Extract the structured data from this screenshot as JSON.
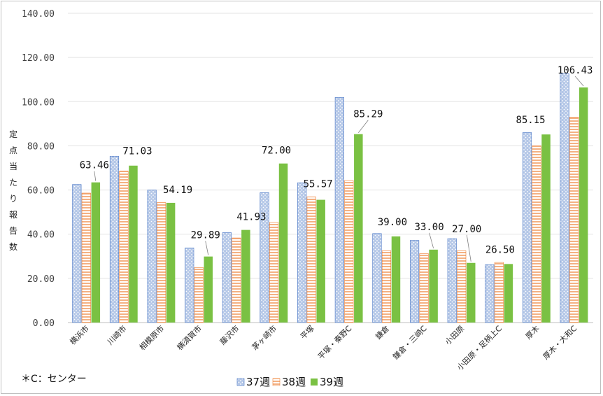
{
  "chart_data": {
    "type": "bar",
    "ylabel": "定点当たり報告数",
    "ylim": [
      0,
      140
    ],
    "yticks": [
      "0.00",
      "20.00",
      "40.00",
      "60.00",
      "80.00",
      "100.00",
      "120.00",
      "140.00"
    ],
    "categories": [
      "横浜市",
      "川崎市",
      "相模原市",
      "横須賀市",
      "藤沢市",
      "茅ヶ崎市",
      "平塚",
      "平塚・秦野C",
      "鎌倉",
      "鎌倉・三崎C",
      "小田原",
      "小田原・足柄上C",
      "厚木",
      "厚木・大和C"
    ],
    "series": [
      {
        "name": "37週",
        "color": "#8faadc",
        "values": [
          62.5,
          75.3,
          60.0,
          33.8,
          40.7,
          58.8,
          63.3,
          101.9,
          40.3,
          37.2,
          38.0,
          26.2,
          86.0,
          112.6
        ]
      },
      {
        "name": "38週",
        "color": "#f4b183",
        "values": [
          58.6,
          68.6,
          54.3,
          24.9,
          38.3,
          45.3,
          56.9,
          64.3,
          32.5,
          31.2,
          32.5,
          27.2,
          80.0,
          93.0
        ]
      },
      {
        "name": "39週",
        "color": "#7ac143",
        "values": [
          63.46,
          71.03,
          54.19,
          29.89,
          41.93,
          72.0,
          55.57,
          85.29,
          39.0,
          33.0,
          27.0,
          26.5,
          85.15,
          106.43
        ]
      }
    ],
    "data_labels": [
      "63.46",
      "71.03",
      "54.19",
      "29.89",
      "41.93",
      "72.00",
      "55.57",
      "85.29",
      "39.00",
      "33.00",
      "27.00",
      "26.50",
      "85.15",
      "106.43"
    ],
    "legend_position": "bottom",
    "grid": true
  },
  "note": "＊C：センター"
}
